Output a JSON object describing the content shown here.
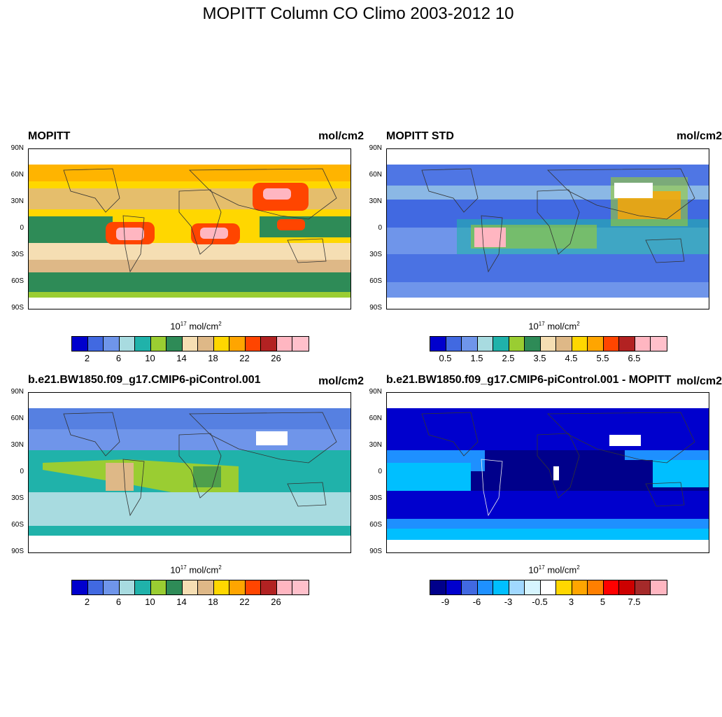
{
  "figure": {
    "title": "MOPITT Column CO Climo 2003-2012 10"
  },
  "lat_labels": [
    "90N",
    "60N",
    "30N",
    "0",
    "30S",
    "60S",
    "90S"
  ],
  "panels": [
    {
      "left_title": "MOPITT",
      "right_title": "mol/cm2",
      "units_base": "10",
      "units_exp": "17",
      "units_rest": " mol/cm",
      "units_sq": "2",
      "colors": [
        "#0000cd",
        "#4169e1",
        "#6f95ea",
        "#a8dbe0",
        "#20b2aa",
        "#9acd32",
        "#2e8b57",
        "#f5deb3",
        "#deb887",
        "#ffd700",
        "#ffa500",
        "#ff4500",
        "#b22222",
        "#ffb6c1",
        "#ffc0cb"
      ],
      "tick_labels": [
        "2",
        "6",
        "10",
        "14",
        "18",
        "22",
        "26"
      ]
    },
    {
      "left_title": "MOPITT STD",
      "right_title": "mol/cm2",
      "units_base": "10",
      "units_exp": "17",
      "units_rest": " mol/cm",
      "units_sq": "2",
      "colors": [
        "#0000cd",
        "#4169e1",
        "#6f95ea",
        "#a8dbe0",
        "#20b2aa",
        "#9acd32",
        "#2e8b57",
        "#f5deb3",
        "#deb887",
        "#ffd700",
        "#ffa500",
        "#ff4500",
        "#b22222",
        "#ffb6c1",
        "#ffc0cb"
      ],
      "tick_labels": [
        "0.5",
        "1.5",
        "2.5",
        "3.5",
        "4.5",
        "5.5",
        "6.5"
      ]
    },
    {
      "left_title": "b.e21.BW1850.f09_g17.CMIP6-piControl.001",
      "right_title": "mol/cm2",
      "units_base": "10",
      "units_exp": "17",
      "units_rest": " mol/cm",
      "units_sq": "2",
      "colors": [
        "#0000cd",
        "#4169e1",
        "#6f95ea",
        "#a8dbe0",
        "#20b2aa",
        "#9acd32",
        "#2e8b57",
        "#f5deb3",
        "#deb887",
        "#ffd700",
        "#ffa500",
        "#ff4500",
        "#b22222",
        "#ffb6c1",
        "#ffc0cb"
      ],
      "tick_labels": [
        "2",
        "6",
        "10",
        "14",
        "18",
        "22",
        "26"
      ]
    },
    {
      "left_title": "b.e21.BW1850.f09_g17.CMIP6-piControl.001 - MOPITT",
      "right_title": "mol/cm2",
      "units_base": "10",
      "units_exp": "17",
      "units_rest": " mol/cm",
      "units_sq": "2",
      "colors": [
        "#00008b",
        "#0000cd",
        "#4169e1",
        "#1e90ff",
        "#00bfff",
        "#a0d8ff",
        "#d6f5ff",
        "#ffffff",
        "#ffd700",
        "#ffa500",
        "#ff7f00",
        "#ff0000",
        "#cd0000",
        "#a52a2a",
        "#ffb6c1"
      ],
      "tick_labels": [
        "-9",
        "-6",
        "-3",
        "-0.5",
        "3",
        "5",
        "7.5"
      ]
    }
  ]
}
